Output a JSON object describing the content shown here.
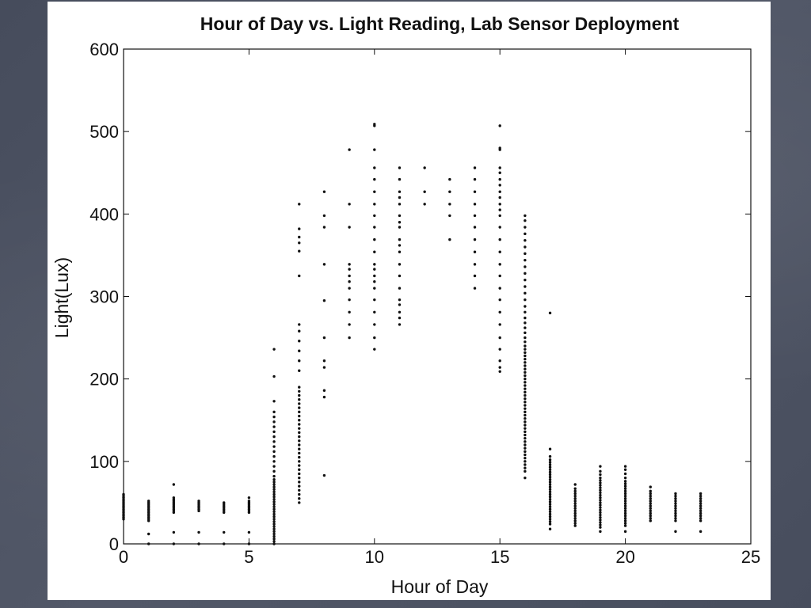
{
  "chart_data": {
    "type": "scatter",
    "title": "Hour of Day vs. Light Reading, Lab Sensor Deployment",
    "xlabel": "Hour of Day",
    "ylabel": "Light(Lux)",
    "xlim": [
      0,
      25
    ],
    "ylim": [
      0,
      600
    ],
    "xticks": [
      0,
      5,
      10,
      15,
      20,
      25
    ],
    "yticks": [
      0,
      100,
      200,
      300,
      400,
      500,
      600
    ],
    "grid": false,
    "legend": "none",
    "point_color": "#111111",
    "columns": [
      {
        "hour": 0,
        "y": [
          30,
          32,
          34,
          36,
          38,
          40,
          42,
          44,
          46,
          48,
          50,
          52,
          54,
          56,
          58,
          60
        ]
      },
      {
        "hour": 1,
        "y": [
          0,
          12,
          28,
          30,
          32,
          34,
          36,
          38,
          40,
          42,
          44,
          46,
          48,
          50,
          52
        ]
      },
      {
        "hour": 2,
        "y": [
          0,
          14,
          38,
          40,
          42,
          44,
          46,
          48,
          50,
          52,
          54,
          56,
          72
        ]
      },
      {
        "hour": 3,
        "y": [
          0,
          14,
          40,
          42,
          44,
          46,
          48,
          50,
          52
        ]
      },
      {
        "hour": 4,
        "y": [
          0,
          14,
          38,
          40,
          42,
          44,
          46,
          48,
          50
        ]
      },
      {
        "hour": 5,
        "y": [
          0,
          14,
          38,
          40,
          42,
          44,
          46,
          48,
          50,
          52,
          56
        ]
      },
      {
        "hour": 6,
        "y": [
          0,
          3,
          6,
          9,
          12,
          15,
          18,
          21,
          24,
          27,
          30,
          33,
          36,
          39,
          42,
          45,
          48,
          51,
          54,
          57,
          60,
          63,
          66,
          69,
          72,
          75,
          78,
          82,
          88,
          94,
          100,
          106,
          112,
          118,
          124,
          130,
          136,
          142,
          148,
          154,
          160,
          173,
          203,
          236
        ]
      },
      {
        "hour": 7,
        "y": [
          50,
          55,
          60,
          65,
          70,
          75,
          80,
          85,
          90,
          95,
          100,
          105,
          110,
          115,
          120,
          125,
          130,
          135,
          140,
          145,
          150,
          155,
          160,
          165,
          170,
          175,
          180,
          185,
          190,
          210,
          222,
          234,
          246,
          258,
          266,
          325,
          355,
          365,
          372,
          382,
          412
        ]
      },
      {
        "hour": 8,
        "y": [
          83,
          178,
          186,
          214,
          222,
          250,
          295,
          339,
          384,
          398,
          427
        ]
      },
      {
        "hour": 9,
        "y": [
          250,
          266,
          281,
          296,
          310,
          318,
          325,
          333,
          339,
          384,
          412,
          478
        ]
      },
      {
        "hour": 10,
        "y": [
          236,
          250,
          266,
          281,
          296,
          310,
          318,
          325,
          333,
          339,
          354,
          369,
          384,
          398,
          412,
          427,
          442,
          456,
          478,
          507,
          509
        ]
      },
      {
        "hour": 11,
        "y": [
          266,
          274,
          281,
          290,
          296,
          310,
          325,
          339,
          354,
          362,
          369,
          384,
          390,
          398,
          412,
          420,
          427,
          442,
          456
        ]
      },
      {
        "hour": 12,
        "y": [
          412,
          427,
          456
        ]
      },
      {
        "hour": 13,
        "y": [
          369,
          398,
          412,
          427,
          442
        ]
      },
      {
        "hour": 14,
        "y": [
          310,
          325,
          339,
          354,
          369,
          384,
          398,
          412,
          427,
          442,
          456
        ]
      },
      {
        "hour": 15,
        "y": [
          209,
          214,
          222,
          236,
          250,
          266,
          281,
          296,
          310,
          325,
          339,
          354,
          369,
          384,
          398,
          405,
          412,
          420,
          427,
          435,
          442,
          450,
          456,
          478,
          480,
          507
        ]
      },
      {
        "hour": 16,
        "y": [
          80,
          88,
          92,
          96,
          100,
          104,
          108,
          112,
          116,
          120,
          124,
          128,
          132,
          136,
          140,
          144,
          148,
          152,
          156,
          160,
          164,
          168,
          172,
          176,
          180,
          184,
          188,
          192,
          196,
          200,
          204,
          208,
          212,
          216,
          220,
          224,
          228,
          232,
          236,
          240,
          245,
          250,
          256,
          262,
          268,
          274,
          281,
          288,
          296,
          304,
          312,
          320,
          328,
          336,
          344,
          352,
          360,
          368,
          376,
          384,
          392,
          398
        ]
      },
      {
        "hour": 17,
        "y": [
          18,
          24,
          27,
          30,
          33,
          36,
          39,
          42,
          45,
          48,
          51,
          54,
          57,
          60,
          63,
          66,
          69,
          72,
          75,
          78,
          81,
          84,
          87,
          90,
          93,
          96,
          99,
          102,
          106,
          115,
          280
        ]
      },
      {
        "hour": 18,
        "y": [
          22,
          25,
          28,
          31,
          34,
          37,
          40,
          43,
          46,
          49,
          52,
          55,
          58,
          61,
          64,
          67,
          72
        ]
      },
      {
        "hour": 19,
        "y": [
          15,
          20,
          23,
          26,
          29,
          32,
          35,
          38,
          41,
          44,
          47,
          50,
          53,
          56,
          59,
          62,
          65,
          68,
          71,
          74,
          77,
          80,
          84,
          88,
          94
        ]
      },
      {
        "hour": 20,
        "y": [
          15,
          22,
          25,
          28,
          31,
          34,
          37,
          40,
          43,
          46,
          49,
          52,
          55,
          58,
          61,
          64,
          67,
          70,
          73,
          76,
          80,
          85,
          90,
          94
        ]
      },
      {
        "hour": 21,
        "y": [
          28,
          31,
          34,
          37,
          40,
          43,
          46,
          49,
          52,
          55,
          58,
          61,
          64,
          69
        ]
      },
      {
        "hour": 22,
        "y": [
          15,
          28,
          31,
          34,
          37,
          40,
          43,
          46,
          49,
          52,
          55,
          58,
          61
        ]
      },
      {
        "hour": 23,
        "y": [
          15,
          28,
          31,
          34,
          37,
          40,
          43,
          46,
          49,
          52,
          55,
          58,
          61
        ]
      }
    ]
  }
}
